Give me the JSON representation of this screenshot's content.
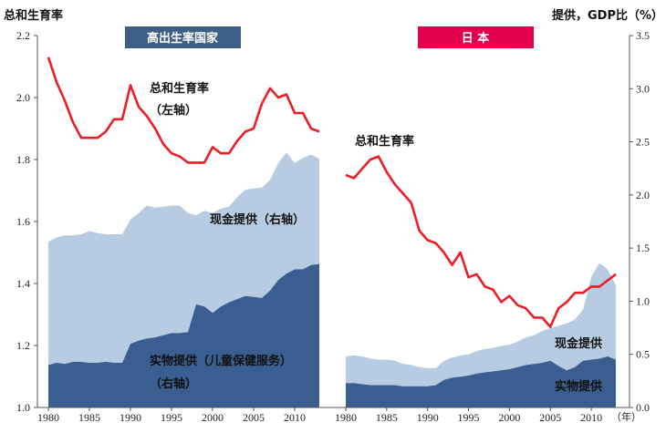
{
  "left_axis_label": "总和生育率",
  "right_axis_label": "提供，GDP比（%）",
  "year_unit": "（年）",
  "colors": {
    "cash": "#b7cce3",
    "inkind": "#3a5e8f",
    "fertility": "#ee1c25",
    "title_left_bg": "#3d5f86",
    "title_right_bg": "#e4004f"
  },
  "chart_data": [
    {
      "type": "area",
      "title": "高出生率国家",
      "x": [
        1980,
        1981,
        1982,
        1983,
        1984,
        1985,
        1986,
        1987,
        1988,
        1989,
        1990,
        1991,
        1992,
        1993,
        1994,
        1995,
        1996,
        1997,
        1998,
        1999,
        2000,
        2001,
        2002,
        2003,
        2004,
        2005,
        2006,
        2007,
        2008,
        2009,
        2010,
        2011,
        2012,
        2013
      ],
      "xticks": [
        1980,
        1985,
        1990,
        1995,
        2000,
        2005,
        2010
      ],
      "ylim_left": [
        1.0,
        2.2
      ],
      "yticks_left": [
        "1.0",
        "1.2",
        "1.4",
        "1.6",
        "1.8",
        "2.0",
        "2.2"
      ],
      "ylim_right": [
        0,
        3.5
      ],
      "yticks_right": [],
      "series": [
        {
          "name": "实物提供（儿童保健服务）（右轴）",
          "axis": "right",
          "kind": "stack",
          "values": [
            0.4,
            0.42,
            0.41,
            0.43,
            0.43,
            0.42,
            0.42,
            0.43,
            0.42,
            0.42,
            0.6,
            0.63,
            0.65,
            0.66,
            0.68,
            0.7,
            0.7,
            0.71,
            0.97,
            0.95,
            0.89,
            0.95,
            0.99,
            1.02,
            1.05,
            1.04,
            1.03,
            1.1,
            1.2,
            1.26,
            1.3,
            1.3,
            1.34,
            1.35
          ]
        },
        {
          "name": "现金提供（右轴）",
          "axis": "right",
          "kind": "stack",
          "values": [
            1.16,
            1.18,
            1.21,
            1.19,
            1.2,
            1.24,
            1.22,
            1.2,
            1.21,
            1.21,
            1.17,
            1.2,
            1.25,
            1.22,
            1.21,
            1.2,
            1.2,
            1.12,
            0.84,
            0.9,
            0.94,
            0.92,
            0.9,
            0.96,
            1.0,
            1.02,
            1.04,
            1.04,
            1.1,
            1.14,
            1.0,
            1.05,
            1.04,
            0.99
          ]
        },
        {
          "name": "总和生育率（左轴）",
          "axis": "left",
          "kind": "line",
          "values": [
            2.13,
            2.05,
            1.99,
            1.92,
            1.87,
            1.87,
            1.87,
            1.89,
            1.93,
            1.93,
            2.04,
            1.97,
            1.94,
            1.9,
            1.85,
            1.82,
            1.81,
            1.79,
            1.79,
            1.79,
            1.84,
            1.82,
            1.82,
            1.86,
            1.89,
            1.9,
            1.98,
            2.03,
            2.0,
            2.01,
            1.95,
            1.95,
            1.9,
            1.89
          ]
        }
      ],
      "annotations": {
        "fertility": [
          "总和生育率",
          "（左轴）"
        ],
        "cash": "现金提供（右轴）",
        "inkind": [
          "实物提供（儿童保健服务）",
          "（右轴）"
        ]
      }
    },
    {
      "type": "area",
      "title": "日 本",
      "x": [
        1980,
        1981,
        1982,
        1983,
        1984,
        1985,
        1986,
        1987,
        1988,
        1989,
        1990,
        1991,
        1992,
        1993,
        1994,
        1995,
        1996,
        1997,
        1998,
        1999,
        2000,
        2001,
        2002,
        2003,
        2004,
        2005,
        2006,
        2007,
        2008,
        2009,
        2010,
        2011,
        2012,
        2013
      ],
      "xticks": [
        1980,
        1985,
        1990,
        1995,
        2000,
        2005,
        2010
      ],
      "ylim_left": [
        1.0,
        2.2
      ],
      "yticks_left": [],
      "ylim_right": [
        0,
        3.5
      ],
      "yticks_right": [
        "0.0",
        "0.5",
        "1.0",
        "1.5",
        "2.0",
        "2.5",
        "3.0",
        "3.5"
      ],
      "series": [
        {
          "name": "实物提供",
          "axis": "right",
          "kind": "stack",
          "values": [
            0.23,
            0.23,
            0.22,
            0.21,
            0.21,
            0.21,
            0.21,
            0.2,
            0.2,
            0.2,
            0.2,
            0.21,
            0.26,
            0.28,
            0.29,
            0.3,
            0.32,
            0.33,
            0.34,
            0.35,
            0.36,
            0.38,
            0.4,
            0.41,
            0.42,
            0.44,
            0.39,
            0.35,
            0.38,
            0.44,
            0.45,
            0.46,
            0.48,
            0.45
          ]
        },
        {
          "name": "现金提供",
          "axis": "right",
          "kind": "stack",
          "values": [
            0.25,
            0.26,
            0.26,
            0.25,
            0.24,
            0.24,
            0.23,
            0.21,
            0.2,
            0.18,
            0.17,
            0.16,
            0.18,
            0.19,
            0.2,
            0.2,
            0.21,
            0.22,
            0.22,
            0.23,
            0.23,
            0.24,
            0.26,
            0.27,
            0.3,
            0.31,
            0.38,
            0.44,
            0.45,
            0.48,
            0.78,
            0.9,
            0.82,
            0.7
          ]
        },
        {
          "name": "总和生育率",
          "axis": "left",
          "kind": "line",
          "values": [
            1.75,
            1.74,
            1.77,
            1.8,
            1.81,
            1.76,
            1.72,
            1.69,
            1.66,
            1.57,
            1.54,
            1.53,
            1.5,
            1.46,
            1.5,
            1.42,
            1.43,
            1.39,
            1.38,
            1.34,
            1.36,
            1.33,
            1.32,
            1.29,
            1.29,
            1.26,
            1.32,
            1.34,
            1.37,
            1.37,
            1.39,
            1.39,
            1.41,
            1.43
          ]
        }
      ],
      "annotations": {
        "fertility": [
          "总和生育率"
        ],
        "cash": "现金提供",
        "inkind": [
          "实物提供"
        ]
      }
    }
  ]
}
